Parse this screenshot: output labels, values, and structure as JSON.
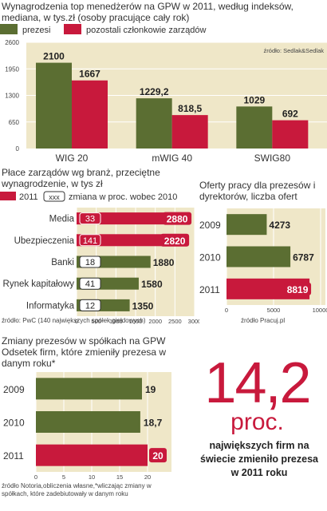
{
  "chart_data": [
    {
      "type": "bar",
      "title": "Wynagrodzenia top menedżerów na GPW w  2011, według indeksów, mediana, w tys.zł (osoby pracujące cały rok)",
      "legend": [
        {
          "name": "prezesi",
          "color": "#5b6e32"
        },
        {
          "name": "pozostali członkowie zarządów",
          "color": "#c8193c"
        }
      ],
      "source": "źródło: Sedlak&Sedlak",
      "categories": [
        "WIG 20",
        "mWIG 40",
        "SWIG80"
      ],
      "series": [
        {
          "name": "prezesi",
          "values": [
            2100,
            1229.2,
            1029
          ],
          "labels": [
            "2100",
            "1229,2",
            "1029"
          ]
        },
        {
          "name": "pozostali członkowie zarządów",
          "values": [
            1667,
            818.5,
            692
          ],
          "labels": [
            "1667",
            "818,5",
            "692"
          ]
        }
      ],
      "ylim": [
        0,
        2600
      ],
      "yticks": [
        "0",
        "650",
        "1300",
        "1950",
        "2600"
      ]
    },
    {
      "type": "bar",
      "orientation": "horizontal",
      "title": "Płace zarządów wg branż, przeciętne wynagrodzenie, w tys zł",
      "legend": {
        "year": "2011",
        "box": "xxx",
        "text": "zmiana w proc. wobec 2010"
      },
      "categories": [
        "Media",
        "Ubezpieczenia",
        "Banki",
        "Rynek kapitałowy",
        "Informatyka"
      ],
      "values": [
        2880,
        2820,
        1880,
        1580,
        1350
      ],
      "changes": [
        "33",
        "141",
        "18",
        "41",
        "12"
      ],
      "highlight": [
        "Media",
        "Ubezpieczenia"
      ],
      "xlim": [
        0,
        3000
      ],
      "xticks": [
        "0",
        "500",
        "1000",
        "1500",
        "2000",
        "2500",
        "3000"
      ],
      "source": "źródło: PwC (140 największych spółek giełdowych)"
    },
    {
      "type": "bar",
      "orientation": "horizontal",
      "title": "Oferty pracy dla prezesów i dyrektorów, liczba ofert",
      "categories": [
        "2009",
        "2010",
        "2011"
      ],
      "values": [
        4273,
        6787,
        8819
      ],
      "xlim": [
        0,
        10000
      ],
      "xticks": [
        "0",
        "5000",
        "10000"
      ],
      "source": "źródło Pracuj.pl"
    },
    {
      "type": "bar",
      "orientation": "horizontal",
      "title": "Zmiany prezesów w spółkach na GPW Odsetek firm, które zmieniły prezesa w danym roku*",
      "categories": [
        "2009",
        "2010",
        "2011"
      ],
      "values": [
        19,
        18.7,
        20
      ],
      "labels": [
        "19",
        "18,7",
        "20"
      ],
      "xlim": [
        0,
        20
      ],
      "xticks": [
        "0",
        "5",
        "10",
        "15",
        "20"
      ],
      "source": "źródło Notoria,obliczenia własne,*wliczając zmiany w spółkach, które zadebiutowały w danym roku"
    }
  ],
  "callout": {
    "number": "14,2",
    "unit": "proc.",
    "text": "największych firm na świecie zmieniło prezesa w 2011 roku"
  },
  "colors": {
    "green": "#5b6e32",
    "red": "#c8193c",
    "panel": "#efe7c8"
  }
}
